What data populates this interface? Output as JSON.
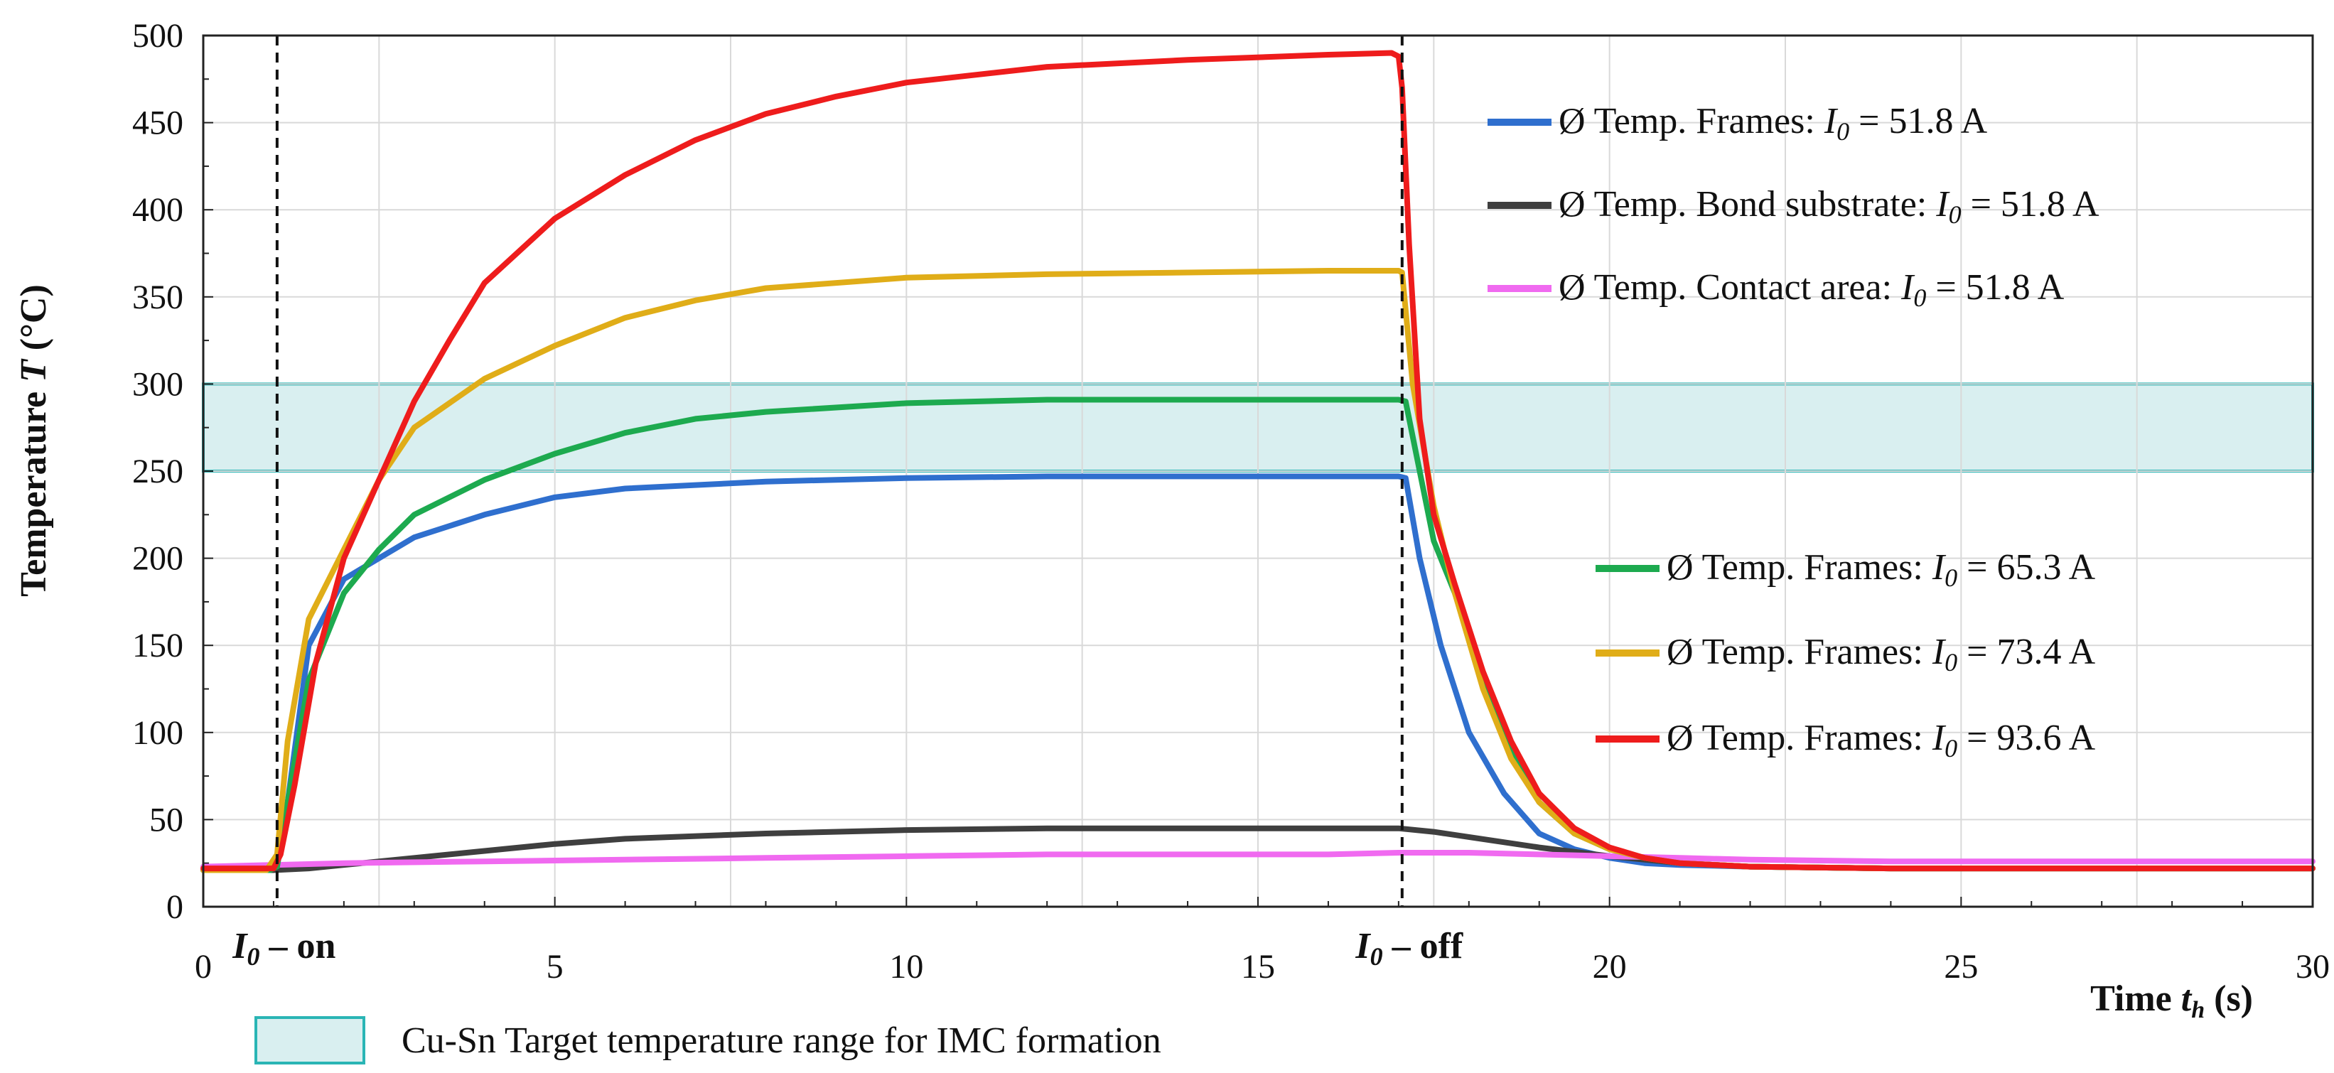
{
  "chart_data": {
    "type": "line",
    "xlabel": "Time",
    "xlabel_var": "t",
    "xlabel_sub": "h",
    "xlabel_unit": "(s)",
    "ylabel": "Temperature",
    "ylabel_var": "T",
    "ylabel_unit": "(°C)",
    "xlim": [
      0,
      30
    ],
    "ylim": [
      0,
      500
    ],
    "xticks": [
      0,
      5,
      10,
      15,
      20,
      25,
      30
    ],
    "yticks": [
      0,
      50,
      100,
      150,
      200,
      250,
      300,
      350,
      400,
      450,
      500
    ],
    "grid": true,
    "markers": [
      {
        "x": 1.05,
        "label_var": "I",
        "label_sub": "0",
        "label_rest": " – on"
      },
      {
        "x": 17.05,
        "label_var": "I",
        "label_sub": "0",
        "label_rest": " – off"
      }
    ],
    "band": {
      "y_min": 250,
      "y_max": 300,
      "label": "Cu-Sn Target temperature range for IMC formation",
      "fill": "#d9eff0",
      "stroke": "#2ab5b5"
    },
    "series": [
      {
        "name": "Ø Temp. Frames:",
        "current_label": "I",
        "current_sub": "0",
        "current_value": "= 51.8 A",
        "color": "#2f6fce",
        "x": [
          0,
          0.9,
          1.05,
          1.2,
          1.5,
          2.0,
          2.5,
          3.0,
          4.0,
          5.0,
          6.0,
          8.0,
          10.0,
          12.0,
          14.0,
          16.0,
          17.0,
          17.1,
          17.3,
          17.6,
          18.0,
          18.5,
          19.0,
          19.5,
          20.0,
          20.5,
          21.0,
          22.0,
          24.0,
          27.0,
          30.0
        ],
        "y": [
          21,
          21,
          23,
          60,
          150,
          188,
          200,
          212,
          225,
          235,
          240,
          244,
          246,
          247,
          247,
          247,
          247,
          246,
          200,
          150,
          100,
          65,
          42,
          33,
          28,
          25,
          24,
          23,
          22,
          22,
          22
        ]
      },
      {
        "name": "Ø Temp. Bond substrate:",
        "current_label": "I",
        "current_sub": "0",
        "current_value": "= 51.8 A",
        "color": "#3f3f3f",
        "x": [
          0,
          1.0,
          1.5,
          2.0,
          3.0,
          4.0,
          5.0,
          6.0,
          8.0,
          10.0,
          12.0,
          14.0,
          16.0,
          17.0,
          17.5,
          18.0,
          19.0,
          20.0,
          21.0,
          22.0,
          24.0,
          27.0,
          30.0
        ],
        "y": [
          21,
          21,
          22,
          24,
          28,
          32,
          36,
          39,
          42,
          44,
          45,
          45,
          45,
          45,
          43,
          40,
          34,
          29,
          25,
          23,
          22,
          22,
          22
        ]
      },
      {
        "name": "Ø Temp. Contact area:",
        "current_label": "I",
        "current_sub": "0",
        "current_value": "= 51.8 A",
        "color": "#f06af0",
        "x": [
          0,
          1.0,
          2.0,
          4.0,
          6.0,
          8.0,
          10.0,
          12.0,
          14.0,
          16.0,
          17.0,
          18.0,
          19.0,
          20.0,
          21.0,
          22.0,
          24.0,
          27.0,
          30.0
        ],
        "y": [
          23,
          24,
          25,
          26,
          27,
          28,
          29,
          30,
          30,
          30,
          31,
          31,
          30,
          29,
          28,
          27,
          26,
          26,
          26
        ]
      },
      {
        "name": "Ø Temp. Frames:",
        "current_label": "I",
        "current_sub": "0",
        "current_value": "= 65.3 A",
        "color": "#1daa4f",
        "x": [
          0,
          0.95,
          1.05,
          1.2,
          1.5,
          2.0,
          2.5,
          3.0,
          4.0,
          5.0,
          6.0,
          7.0,
          8.0,
          10.0,
          12.0,
          14.0,
          16.0,
          17.0,
          17.1,
          17.3,
          17.5,
          17.8,
          18.2,
          18.6,
          19.0,
          19.5,
          20.0,
          20.5,
          21.0,
          22.0,
          24.0,
          27.0,
          30.0
        ],
        "y": [
          21,
          21,
          23,
          60,
          130,
          180,
          205,
          225,
          245,
          260,
          272,
          280,
          284,
          289,
          291,
          291,
          291,
          291,
          290,
          250,
          210,
          180,
          130,
          90,
          60,
          42,
          33,
          28,
          25,
          23,
          22,
          22,
          22
        ]
      },
      {
        "name": "Ø Temp. Frames:",
        "current_label": "I",
        "current_sub": "0",
        "current_value": "= 73.4 A",
        "color": "#e0ad18",
        "x": [
          0,
          0.9,
          1.05,
          1.2,
          1.5,
          2.0,
          2.5,
          3.0,
          4.0,
          5.0,
          6.0,
          7.0,
          8.0,
          10.0,
          12.0,
          14.0,
          16.0,
          17.0,
          17.05,
          17.2,
          17.5,
          17.8,
          18.2,
          18.6,
          19.0,
          19.5,
          20.0,
          20.5,
          21.0,
          22.0,
          24.0,
          27.0,
          30.0
        ],
        "y": [
          21,
          21,
          30,
          95,
          165,
          205,
          245,
          275,
          303,
          322,
          338,
          348,
          355,
          361,
          363,
          364,
          365,
          365,
          364,
          300,
          230,
          180,
          125,
          85,
          60,
          42,
          33,
          28,
          25,
          23,
          22,
          22,
          22
        ]
      },
      {
        "name": "Ø Temp. Frames:",
        "current_label": "I",
        "current_sub": "0",
        "current_value": "= 93.6 A",
        "color": "#ee1c1c",
        "x": [
          0,
          1.0,
          1.1,
          1.3,
          1.6,
          2.0,
          2.5,
          3.0,
          3.5,
          4.0,
          5.0,
          6.0,
          7.0,
          8.0,
          9.0,
          10.0,
          12.0,
          14.0,
          16.0,
          16.9,
          17.0,
          17.05,
          17.15,
          17.3,
          17.5,
          17.8,
          18.2,
          18.6,
          19.0,
          19.5,
          20.0,
          20.5,
          21.0,
          22.0,
          24.0,
          27.0,
          30.0
        ],
        "y": [
          22,
          22,
          30,
          70,
          140,
          200,
          245,
          290,
          325,
          358,
          395,
          420,
          440,
          455,
          465,
          473,
          482,
          486,
          489,
          490,
          488,
          470,
          380,
          280,
          225,
          185,
          135,
          95,
          65,
          45,
          34,
          28,
          25,
          23,
          22,
          22,
          22
        ]
      }
    ]
  }
}
